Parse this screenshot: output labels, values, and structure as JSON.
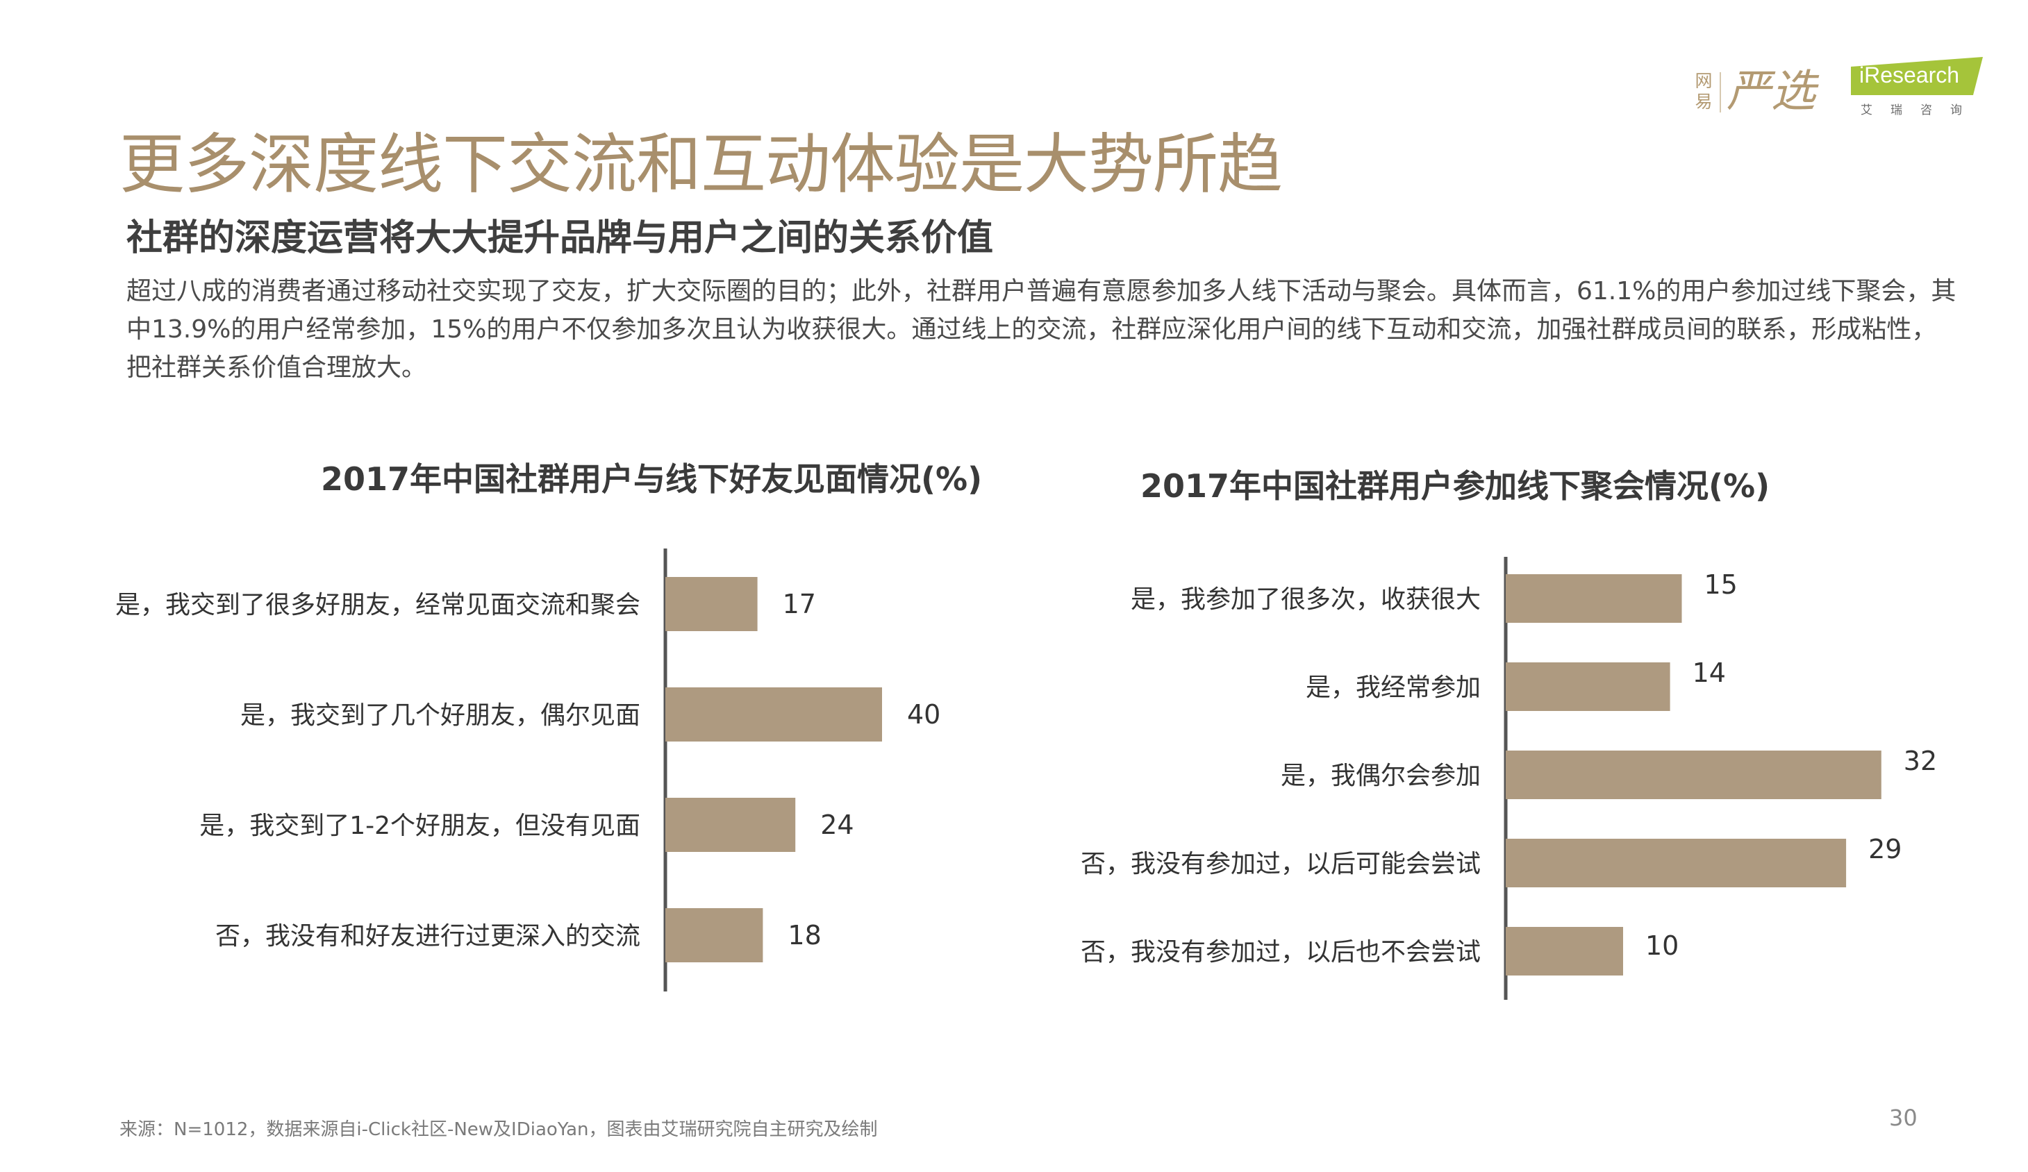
{
  "logos": {
    "yanxuan_small": "网易",
    "yanxuan_big": "严选",
    "iresearch_name": "iResearch",
    "iresearch_sub": "艾瑞咨询"
  },
  "title": "更多深度线下交流和互动体验是大势所趋",
  "subtitle": "社群的深度运营将大大提升品牌与用户之间的关系价值",
  "description": "超过八成的消费者通过移动社交实现了交友，扩大交际圈的目的；此外，社群用户普遍有意愿参加多人线下活动与聚会。具体而言，61.1%的用户参加过线下聚会，其中13.9%的用户经常参加，15%的用户不仅参加多次且认为收获很大。通过线上的交流，社群应深化用户间的线下互动和交流，加强社群成员间的联系，形成粘性，把社群关系价值合理放大。",
  "source": "来源：N=1012，数据来源自i-Click社区-New及IDiaoYan，图表由艾瑞研究院自主研究及绘制",
  "page_number": "30",
  "colors": {
    "bar": "#ae9a80",
    "title": "#a88f6c",
    "axis": "#555555",
    "iresearch_green": "#a5c43a"
  },
  "chart_data": [
    {
      "type": "bar",
      "orientation": "horizontal",
      "title": "2017年中国社群用户与线下好友见面情况(%)",
      "categories": [
        "是，我交到了很多好朋友，经常见面交流和聚会",
        "是，我交到了几个好朋友，偶尔见面",
        "是，我交到了1-2个好朋友，但没有见面",
        "否，我没有和好友进行过更深入的交流"
      ],
      "values": [
        17,
        40,
        24,
        18
      ],
      "data_labels": [
        "17",
        "40",
        "24",
        "18"
      ],
      "xlim": [
        0,
        40
      ],
      "grid": false,
      "legend": "none"
    },
    {
      "type": "bar",
      "orientation": "horizontal",
      "title": "2017年中国社群用户参加线下聚会情况(%)",
      "categories": [
        "是，我参加了很多次，收获很大",
        "是，我经常参加",
        "是，我偶尔会参加",
        "否，我没有参加过，以后可能会尝试",
        "否，我没有参加过，以后也不会尝试"
      ],
      "values": [
        15,
        14,
        32,
        29,
        10
      ],
      "data_labels": [
        "15",
        "14",
        "32",
        "29",
        "10"
      ],
      "xlim": [
        0,
        32
      ],
      "grid": false,
      "legend": "none"
    }
  ]
}
